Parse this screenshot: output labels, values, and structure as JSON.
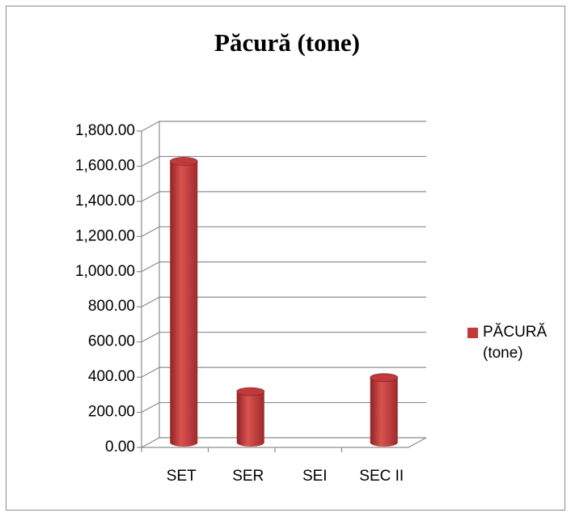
{
  "chart_data": {
    "type": "bar",
    "title": "Păcură (tone)",
    "categories": [
      "SET",
      "SER",
      "SEI",
      "SEC II"
    ],
    "series": [
      {
        "name": "PĂCURĂ (tone)",
        "color": "#c0393b",
        "values": [
          1600,
          290,
          0,
          370
        ]
      }
    ],
    "ylim": [
      0,
      1800
    ],
    "yticks": [
      {
        "value": 0,
        "label": "0.00"
      },
      {
        "value": 200,
        "label": "200.00"
      },
      {
        "value": 400,
        "label": "400.00"
      },
      {
        "value": 600,
        "label": "600.00"
      },
      {
        "value": 800,
        "label": "800.00"
      },
      {
        "value": 1000,
        "label": "1,000.00"
      },
      {
        "value": 1200,
        "label": "1,200.00"
      },
      {
        "value": 1400,
        "label": "1,400.00"
      },
      {
        "value": 1600,
        "label": "1,600.00"
      },
      {
        "value": 1800,
        "label": "1,800.00"
      }
    ],
    "grid": true,
    "legend": "right"
  }
}
